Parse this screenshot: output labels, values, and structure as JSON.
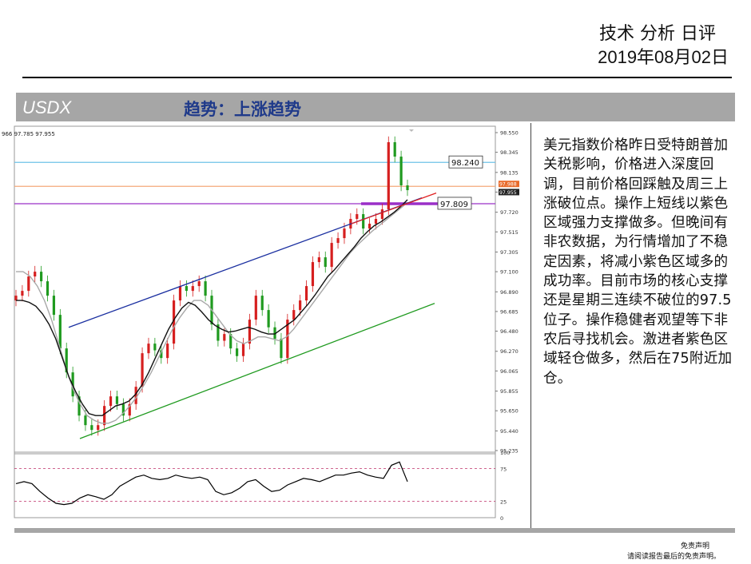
{
  "header": {
    "title": "技术 分析 日评",
    "date": "2019年08月02日"
  },
  "band": {
    "symbol": "USDX",
    "trend": "趋势：上涨趋势"
  },
  "chart_data": {
    "type": "candlestick",
    "instrument": "USDX",
    "top_readout": "966 97.785 97.955",
    "y_ticks": [
      "98.550",
      "98.345",
      "98.135",
      "97.930",
      "97.720",
      "97.515",
      "97.305",
      "97.100",
      "96.890",
      "96.685",
      "96.480",
      "96.270",
      "96.065",
      "95.855",
      "95.650",
      "95.440",
      "95.235"
    ],
    "ylim": [
      95.235,
      98.55
    ],
    "price_tags": {
      "current": "97.955",
      "other": "97.988"
    },
    "levels": [
      {
        "label": "98.240",
        "value": 98.24,
        "color": "#6ec3e8"
      },
      {
        "label": "97.809",
        "value": 97.809,
        "color": "#9b30c8"
      },
      {
        "label": "",
        "value": 97.99,
        "color": "#f4a97a"
      }
    ],
    "close_path": [
      96.85,
      96.9,
      97.05,
      97.1,
      97.0,
      96.85,
      96.65,
      96.3,
      96.05,
      95.8,
      95.6,
      95.5,
      95.45,
      95.5,
      95.7,
      95.8,
      95.72,
      95.6,
      95.72,
      95.9,
      96.25,
      96.35,
      96.28,
      96.2,
      96.35,
      96.8,
      96.95,
      96.9,
      96.95,
      97.0,
      96.85,
      96.55,
      96.38,
      96.45,
      96.3,
      96.22,
      96.35,
      96.6,
      96.85,
      96.7,
      96.52,
      96.4,
      96.2,
      96.6,
      96.7,
      96.8,
      96.95,
      97.2,
      97.25,
      97.15,
      97.4,
      97.45,
      97.55,
      97.65,
      97.7,
      97.55,
      97.6,
      97.65,
      97.75,
      98.45,
      98.3,
      98.0,
      97.95
    ],
    "ma_black": [
      96.8,
      96.8,
      96.78,
      96.74,
      96.66,
      96.55,
      96.4,
      96.2,
      96.0,
      95.85,
      95.72,
      95.62,
      95.6,
      95.6,
      95.65,
      95.7,
      95.72,
      95.75,
      95.82,
      95.92,
      96.05,
      96.2,
      96.35,
      96.5,
      96.62,
      96.72,
      96.78,
      96.75,
      96.68,
      96.6,
      96.54,
      96.5,
      96.47,
      96.48,
      96.5,
      96.52,
      96.5,
      96.47,
      96.45,
      96.45,
      96.5,
      96.55,
      96.6,
      96.68,
      96.76,
      96.85,
      96.95,
      97.05,
      97.12,
      97.2,
      97.28,
      97.36,
      97.45,
      97.52,
      97.58,
      97.62,
      97.67,
      97.72,
      97.78,
      97.85
    ],
    "ma_gray": [
      97.1,
      97.1,
      97.05,
      96.95,
      96.8,
      96.6,
      96.35,
      96.1,
      95.88,
      95.72,
      95.6,
      95.55,
      95.52,
      95.52,
      95.55,
      95.62,
      95.7,
      95.8,
      95.92,
      96.05,
      96.2,
      96.35,
      96.5,
      96.62,
      96.72,
      96.8,
      96.8,
      96.75,
      96.65,
      96.55,
      96.45,
      96.38,
      96.35,
      96.38,
      96.42,
      96.42,
      96.4,
      96.38,
      96.42,
      96.5,
      96.6,
      96.7,
      96.8,
      96.9,
      97.0,
      97.1,
      97.2,
      97.3,
      97.38,
      97.45,
      97.52,
      97.58,
      97.64,
      97.7,
      97.76,
      97.82
    ],
    "lower_panel": {
      "y_ticks": [
        "100",
        "75",
        "25",
        "0"
      ],
      "ylim": [
        0,
        100
      ],
      "values": [
        52,
        55,
        52,
        40,
        30,
        22,
        20,
        22,
        30,
        35,
        32,
        28,
        35,
        48,
        55,
        62,
        65,
        60,
        58,
        60,
        65,
        62,
        60,
        62,
        58,
        40,
        35,
        38,
        45,
        55,
        58,
        48,
        40,
        42,
        50,
        55,
        60,
        58,
        55,
        60,
        65,
        65,
        68,
        70,
        65,
        62,
        60,
        80,
        85,
        55
      ]
    }
  },
  "commentary": "美元指数价格昨日受特朗普加关税影响，价格进入深度回调，目前价格回踩触及周三上涨破位点。操作上短线以紫色区域强力支撑做多。但晚间有非农数据，为行情增加了不稳定因素，将减小紫色区域多的成功率。目前市场的核心支撑还是星期三连续不破位的97.5位子。操作稳健者观望等下非农后寻找机会。激进者紫色区域轻仓做多，然后在75附近加仓。",
  "footer": {
    "disclaimer_title": "免责声明",
    "disclaimer_text": "请阅读报告最后的免责声明。"
  },
  "colors": {
    "band": "#a6a6a6",
    "trend_text": "#1f3a8a",
    "bull_candle": "#d61f1f",
    "bear_candle": "#1f9a1f",
    "channel_upper": "#1a2fa0",
    "channel_lower": "#1f9a1f",
    "support_zone": "#9b30c8"
  }
}
